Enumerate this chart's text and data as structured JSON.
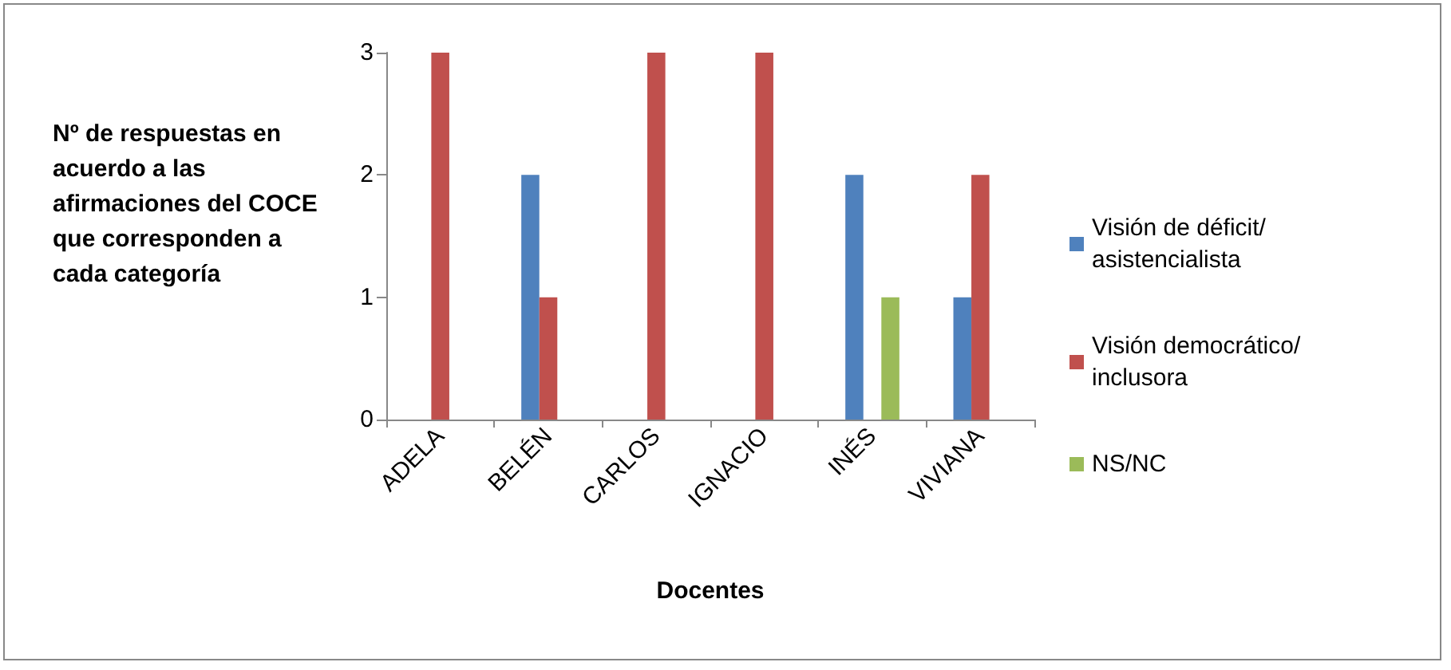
{
  "chart_data": {
    "type": "bar",
    "xlabel": "Docentes",
    "ylabel": "Nº de respuestas en acuerdo a las afirmaciones del COCE que corresponden a cada categoría",
    "categories": [
      "ADELA",
      "BELÉN",
      "CARLOS",
      "IGNACIO",
      "INÉS",
      "VIVIANA"
    ],
    "series": [
      {
        "name": "Visión de déficit/asistencialista",
        "color": "#4f81bd",
        "values": [
          0,
          2,
          0,
          0,
          2,
          1
        ]
      },
      {
        "name": "Visión democrático/inclusora",
        "color": "#c0504d",
        "values": [
          3,
          1,
          3,
          3,
          0,
          2
        ]
      },
      {
        "name": "NS/NC",
        "color": "#9bbb59",
        "values": [
          0,
          0,
          0,
          0,
          1,
          0
        ]
      }
    ],
    "ylim": [
      0,
      3
    ],
    "yticks": [
      0,
      1,
      2,
      3
    ],
    "grid": false,
    "legend": "right"
  }
}
